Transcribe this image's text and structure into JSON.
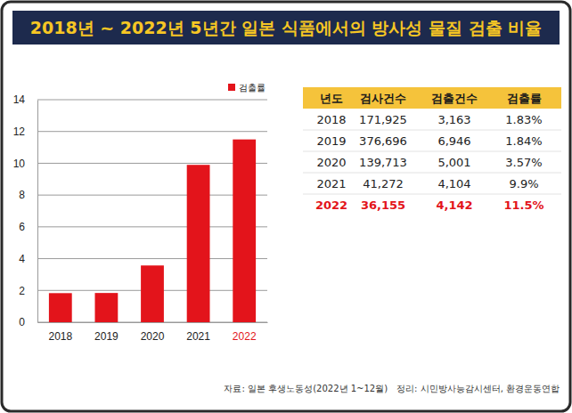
{
  "chart_data": {
    "type": "bar",
    "title": "2018년 ~ 2022년 5년간 일본 식품에서의 방사성 물질 검출 비율",
    "categories": [
      "2018",
      "2019",
      "2020",
      "2021",
      "2022"
    ],
    "series": [
      {
        "name": "검출률",
        "color": "#e3141b",
        "values": [
          1.83,
          1.84,
          3.57,
          9.9,
          11.5
        ]
      }
    ],
    "ylim": [
      0,
      14
    ],
    "yticks": [
      0,
      2,
      4,
      6,
      8,
      10,
      12,
      14
    ],
    "grid": true,
    "legend": "top-right"
  },
  "table": {
    "columns": [
      "년도",
      "검사건수",
      "검출건수",
      "검출률"
    ],
    "rows": [
      [
        "2018",
        "171,925",
        "3,163",
        "1.83%"
      ],
      [
        "2019",
        "376,696",
        "6,946",
        "1.84%"
      ],
      [
        "2020",
        "139,713",
        "5,001",
        "3.57%"
      ],
      [
        "2021",
        "41,272",
        "4,104",
        "9.9%"
      ],
      [
        "2022",
        "36,155",
        "4,142",
        "11.5%"
      ]
    ]
  },
  "source": "자료: 일본 후생노동성(2022년 1~12월)",
  "compiled_by": "정리: 시민방사능감시센터, 환경운동연합"
}
